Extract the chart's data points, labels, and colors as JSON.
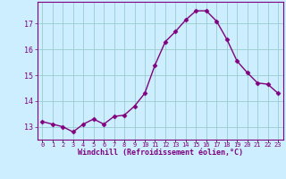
{
  "x": [
    0,
    1,
    2,
    3,
    4,
    5,
    6,
    7,
    8,
    9,
    10,
    11,
    12,
    13,
    14,
    15,
    16,
    17,
    18,
    19,
    20,
    21,
    22,
    23
  ],
  "y": [
    13.2,
    13.1,
    13.0,
    12.8,
    13.1,
    13.3,
    13.1,
    13.4,
    13.45,
    13.8,
    14.3,
    15.4,
    16.3,
    16.7,
    17.15,
    17.5,
    17.5,
    17.1,
    16.4,
    15.55,
    15.1,
    14.7,
    14.65,
    14.3
  ],
  "line_color": "#800080",
  "marker_color": "#800080",
  "bg_color": "#cceeff",
  "grid_color": "#99cccc",
  "xlabel": "Windchill (Refroidissement éolien,°C)",
  "ylabel_ticks": [
    13,
    14,
    15,
    16,
    17
  ],
  "ylim": [
    12.5,
    17.85
  ],
  "xlim": [
    -0.5,
    23.5
  ],
  "tick_labels": [
    "0",
    "1",
    "2",
    "3",
    "4",
    "5",
    "6",
    "7",
    "8",
    "9",
    "10",
    "11",
    "12",
    "13",
    "14",
    "15",
    "16",
    "17",
    "18",
    "19",
    "20",
    "21",
    "22",
    "23"
  ],
  "font_color": "#800080",
  "line_width": 1.0,
  "marker_size": 2.5
}
